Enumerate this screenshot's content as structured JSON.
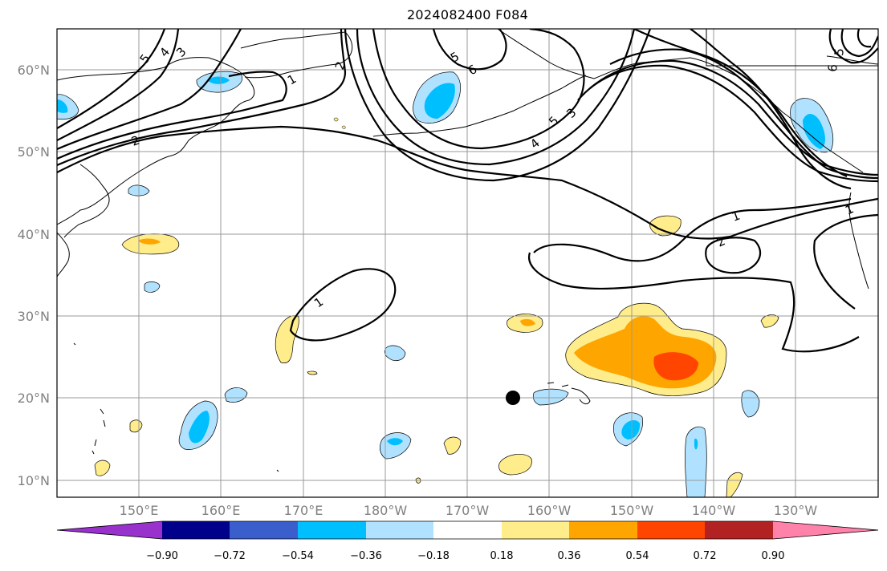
{
  "title": "2024082400 F084",
  "lat_labels": [
    "60°N",
    "50°N",
    "40°N",
    "30°N",
    "20°N",
    "10°N"
  ],
  "lon_labels": [
    "150°E",
    "160°E",
    "170°E",
    "180°W",
    "170°W",
    "160°W",
    "150°W",
    "140°W",
    "130°W"
  ],
  "contour_labels": [
    "5",
    "4",
    "3",
    "2",
    "1",
    "2",
    "5",
    "6",
    "4",
    "5",
    "3",
    "1",
    "2",
    "1",
    "1",
    "6",
    "5"
  ],
  "colorbar": {
    "tick_labels": [
      "−0.90",
      "−0.72",
      "−0.54",
      "−0.36",
      "−0.18",
      "0.18",
      "0.36",
      "0.54",
      "0.72",
      "0.90"
    ],
    "colors": [
      "#9932cc",
      "#00008b",
      "#3a5fcd",
      "#00bfff",
      "#b0e2ff",
      "#ffffff",
      "#ffec8b",
      "#ffa500",
      "#ff4500",
      "#b22222",
      "#ff82ab"
    ]
  },
  "marker": {
    "label": "storm-center",
    "lat": 20,
    "lon": -165
  }
}
